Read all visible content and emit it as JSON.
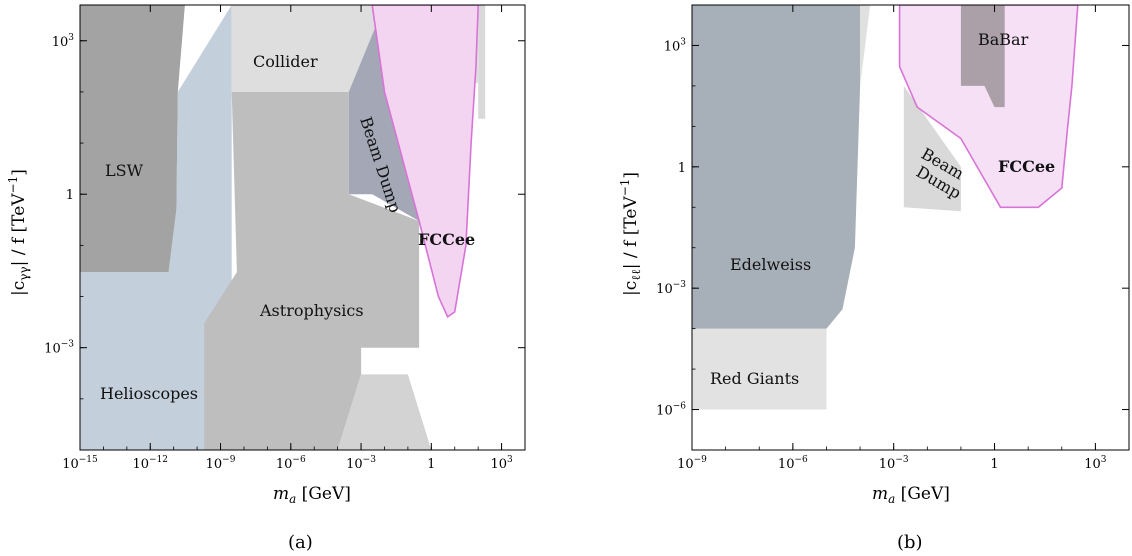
{
  "chart_data": [
    {
      "type": "area",
      "panel": "(a)",
      "xlabel": "m_a [GeV]",
      "ylabel": "|c_γγ| / f [TeV⁻¹]",
      "x_scale": "log",
      "y_scale": "log",
      "xlim": [
        1e-15,
        10000.0
      ],
      "ylim": [
        1e-05,
        5000.0
      ],
      "x_ticks": [
        {
          "v": 1e-15,
          "b": "10",
          "e": "−15"
        },
        {
          "v": 1e-12,
          "b": "10",
          "e": "−12"
        },
        {
          "v": 1e-09,
          "b": "10",
          "e": "−9"
        },
        {
          "v": 1e-06,
          "b": "10",
          "e": "−6"
        },
        {
          "v": 0.001,
          "b": "10",
          "e": "−3"
        },
        {
          "v": 1,
          "b": "1",
          "e": ""
        },
        {
          "v": 1000.0,
          "b": "10",
          "e": "3"
        }
      ],
      "y_ticks": [
        {
          "v": 0.001,
          "b": "10",
          "e": "−3"
        },
        {
          "v": 1,
          "b": "1",
          "e": ""
        },
        {
          "v": 1000.0,
          "b": "10",
          "e": "3"
        }
      ],
      "regions": [
        {
          "name": "Helioscopes",
          "color": "#c3cfdb",
          "points": [
            [
              1e-15,
              1e-05
            ],
            [
              1e-15,
              0.03
            ],
            [
              6e-12,
              0.03
            ],
            [
              1.3e-11,
              0.5
            ],
            [
              1.5e-11,
              100.0
            ],
            [
              3e-09,
              5000.0
            ],
            [
              3e-09,
              1e-05
            ]
          ]
        },
        {
          "name": "LSW",
          "color": "#a3a3a3",
          "points": [
            [
              1e-15,
              0.03
            ],
            [
              1e-15,
              5000.0
            ],
            [
              3e-11,
              5000.0
            ],
            [
              1.5e-11,
              100.0
            ],
            [
              1.3e-11,
              0.5
            ],
            [
              6e-12,
              0.03
            ]
          ]
        },
        {
          "name": "Astrophysics",
          "color": "#bebebe",
          "points": [
            [
              2e-10,
              1e-05
            ],
            [
              2e-10,
              0.003
            ],
            [
              5e-09,
              0.03
            ],
            [
              3e-09,
              100.0
            ],
            [
              0.0003,
              100.0
            ],
            [
              0.0003,
              1
            ],
            [
              0.3,
              0.3
            ],
            [
              0.3,
              0.001
            ],
            [
              0.001,
              0.001
            ],
            [
              0.001,
              0.0003
            ],
            [
              0.0001,
              1e-05
            ]
          ]
        },
        {
          "name": "Astrophysics-tail",
          "color": "#d3d3d3",
          "points": [
            [
              0.0001,
              1e-05
            ],
            [
              0.001,
              0.0003
            ],
            [
              0.1,
              0.0003
            ],
            [
              1,
              1e-05
            ]
          ]
        },
        {
          "name": "Collider",
          "color": "#dedede",
          "points": [
            [
              3e-09,
              100.0
            ],
            [
              3e-09,
              5000.0
            ],
            [
              0.03,
              5000.0
            ],
            [
              100.0,
              5000.0
            ],
            [
              100.0,
              150.0
            ],
            [
              50.0,
              150.0
            ],
            [
              50.0,
              100.0
            ]
          ]
        },
        {
          "name": "Collider-right",
          "color": "#d9d9d9",
          "points": [
            [
              100.0,
              5000.0
            ],
            [
              100.0,
              30.0
            ],
            [
              200.0,
              30.0
            ],
            [
              200.0,
              5000.0
            ]
          ]
        },
        {
          "name": "Beam Dump",
          "color": "#a4a8b6",
          "points": [
            [
              0.0003,
              100.0
            ],
            [
              0.0003,
              1
            ],
            [
              0.003,
              1
            ],
            [
              0.3,
              0.3
            ],
            [
              0.01,
              5000.0
            ]
          ]
        },
        {
          "name": "FCCee",
          "color": "#f3d5f2",
          "stroke": "#d774d6",
          "points": [
            [
              0.003,
              5000.0
            ],
            [
              0.01,
              100.0
            ],
            [
              0.3,
              0.3
            ],
            [
              2,
              0.01
            ],
            [
              5,
              0.004
            ],
            [
              10.0,
              0.005
            ],
            [
              30.0,
              0.1
            ],
            [
              50.0,
              10.0
            ],
            [
              80.0,
              300.0
            ],
            [
              100.0,
              5000.0
            ]
          ]
        }
      ],
      "labels": [
        "LSW",
        "Helioscopes",
        "Collider",
        "Astrophysics",
        "Beam Dump",
        "FCCee"
      ]
    },
    {
      "type": "area",
      "panel": "(b)",
      "xlabel": "m_a [GeV]",
      "ylabel": "|c_ℓℓ| / f [TeV⁻¹]",
      "x_scale": "log",
      "y_scale": "log",
      "xlim": [
        1e-09,
        10000.0
      ],
      "ylim": [
        1e-07,
        10000.0
      ],
      "x_ticks": [
        {
          "v": 1e-09,
          "b": "10",
          "e": "−9"
        },
        {
          "v": 1e-06,
          "b": "10",
          "e": "−6"
        },
        {
          "v": 0.001,
          "b": "10",
          "e": "−3"
        },
        {
          "v": 1,
          "b": "1",
          "e": ""
        },
        {
          "v": 1000.0,
          "b": "10",
          "e": "3"
        }
      ],
      "y_ticks": [
        {
          "v": 1e-06,
          "b": "10",
          "e": "−6"
        },
        {
          "v": 0.001,
          "b": "10",
          "e": "−3"
        },
        {
          "v": 1,
          "b": "1",
          "e": ""
        },
        {
          "v": 1000.0,
          "b": "10",
          "e": "3"
        }
      ],
      "regions": [
        {
          "name": "Red Giants",
          "color": "#e2e2e2",
          "points": [
            [
              1e-09,
              1e-06
            ],
            [
              1e-09,
              0.0001
            ],
            [
              1e-05,
              0.0001
            ],
            [
              1e-05,
              1e-06
            ]
          ]
        },
        {
          "name": "Edelweiss",
          "color": "#a7b0b8",
          "points": [
            [
              1e-09,
              0.0001
            ],
            [
              1e-09,
              10000.0
            ],
            [
              0.0001,
              10000.0
            ],
            [
              0.0001,
              100.0
            ],
            [
              7e-05,
              0.01
            ],
            [
              3e-05,
              0.0003
            ],
            [
              1e-05,
              0.0001
            ]
          ]
        },
        {
          "name": "Edelweiss-edge",
          "color": "#e0e0e0",
          "points": [
            [
              0.0001,
              10000.0
            ],
            [
              0.0001,
              100.0
            ],
            [
              0.0002,
              10000.0
            ]
          ]
        },
        {
          "name": "Beam Dump",
          "color": "#d9d9d9",
          "points": [
            [
              0.002,
              100.0
            ],
            [
              0.002,
              0.1
            ],
            [
              0.1,
              0.08
            ],
            [
              0.1,
              1
            ]
          ]
        },
        {
          "name": "FCCee",
          "color": "#f6e0f6",
          "stroke": "#d774d6",
          "points": [
            [
              0.0015,
              10000.0
            ],
            [
              0.0015,
              300.0
            ],
            [
              0.005,
              30.0
            ],
            [
              0.1,
              5
            ],
            [
              1.5,
              0.1
            ],
            [
              20,
              0.1
            ],
            [
              100.0,
              0.3
            ],
            [
              150.0,
              10.0
            ],
            [
              200.0,
              100.0
            ],
            [
              300.0,
              10000.0
            ]
          ]
        },
        {
          "name": "BaBar",
          "color": "#aba0a8",
          "points": [
            [
              0.1,
              100.0
            ],
            [
              0.1,
              10000.0
            ],
            [
              2,
              10000.0
            ],
            [
              2,
              30.0
            ],
            [
              1,
              30.0
            ],
            [
              0.5,
              100.0
            ]
          ]
        }
      ],
      "labels": [
        "BaBar",
        "Beam Dump",
        "FCCee",
        "Edelweiss",
        "Red Giants"
      ]
    }
  ],
  "panel_a": {
    "caption": "(a)",
    "labels": {
      "lsw": "LSW",
      "helioscopes": "Helioscopes",
      "collider": "Collider",
      "astrophysics": "Astrophysics",
      "beam_dump": "Beam Dump",
      "fccee": "FCCee"
    },
    "xlabel_symbol": "m",
    "xlabel_sub": "a",
    "xlabel_unit": " [GeV]",
    "ylabel_pre": "|c",
    "ylabel_sub": "γγ",
    "ylabel_mid": "| / f [TeV",
    "ylabel_sup": "−1",
    "ylabel_post": "]"
  },
  "panel_b": {
    "caption": "(b)",
    "labels": {
      "babar": "BaBar",
      "beam": "Beam",
      "dump": "Dump",
      "fccee": "FCCee",
      "edelweiss": "Edelweiss",
      "red_giants": "Red Giants"
    },
    "xlabel_symbol": "m",
    "xlabel_sub": "a",
    "xlabel_unit": " [GeV]",
    "ylabel_pre": "|c",
    "ylabel_sub": "ℓℓ",
    "ylabel_mid": "| / f [TeV",
    "ylabel_sup": "−1",
    "ylabel_post": "]"
  }
}
